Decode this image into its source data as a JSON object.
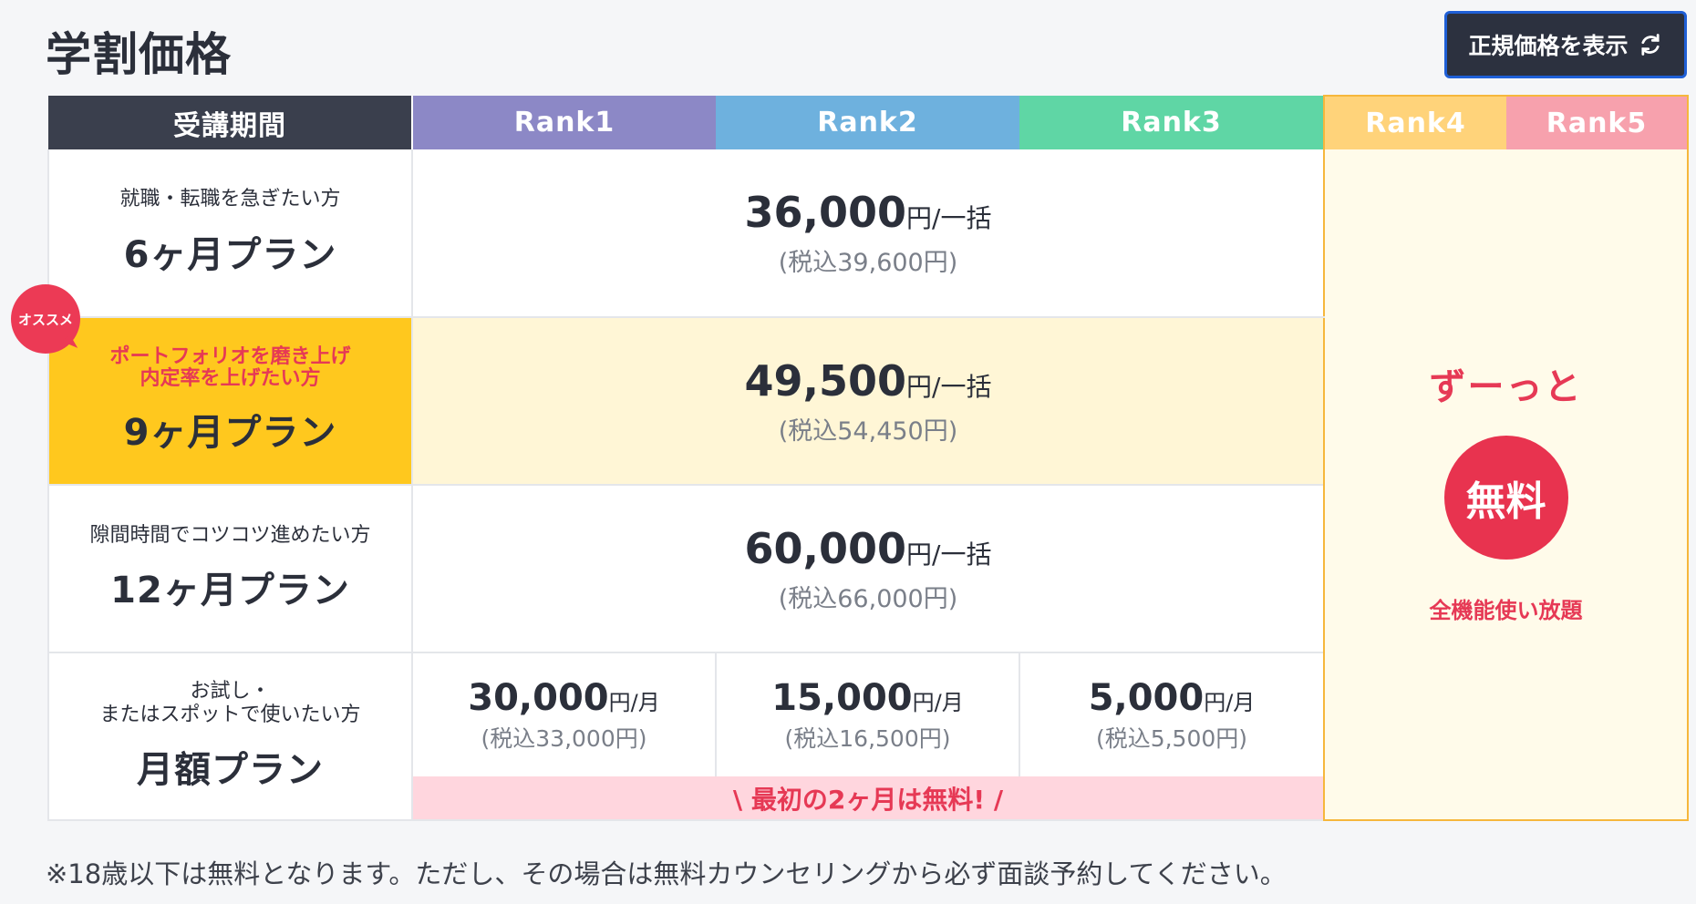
{
  "title": "学割価格",
  "toggle_button": {
    "label": "正規価格を表示",
    "icon": "refresh-icon"
  },
  "headers": {
    "period": "受講期間",
    "ranks": [
      "Rank1",
      "Rank2",
      "Rank3",
      "Rank4",
      "Rank5"
    ]
  },
  "colors": {
    "rank1": "#8c88c6",
    "rank2": "#6eb1de",
    "rank3": "#5fd6a5",
    "rank4": "#ffd37a",
    "rank5": "#f7a1ad",
    "accent": "#e63955",
    "featured": "#ffc81e"
  },
  "plans": [
    {
      "sub": "就職・転職を急ぎたい方",
      "name": "6ヶ月プラン",
      "amount": "36,000",
      "unit": "円/一括",
      "tax": "(税込39,600円)"
    },
    {
      "sub_line1": "ポートフォリオを磨き上げ",
      "sub_line2": "内定率を上げたい方",
      "name": "9ヶ月プラン",
      "amount": "49,500",
      "unit": "円/一括",
      "tax": "(税込54,450円)",
      "badge": "オススメ"
    },
    {
      "sub": "隙間時間でコツコツ進めたい方",
      "name": "12ヶ月プラン",
      "amount": "60,000",
      "unit": "円/一括",
      "tax": "(税込66,000円)"
    },
    {
      "sub_line1": "お試し・",
      "sub_line2": "またはスポットで使いたい方",
      "name": "月額プラン",
      "monthly": [
        {
          "amount": "30,000",
          "unit": "円/月",
          "tax": "(税込33,000円)"
        },
        {
          "amount": "15,000",
          "unit": "円/月",
          "tax": "(税込16,500円)"
        },
        {
          "amount": "5,000",
          "unit": "円/月",
          "tax": "(税込5,500円)"
        }
      ],
      "promo": "\\ 最初の2ヶ月は無料! /"
    }
  ],
  "free_panel": {
    "heading": "ずーっと",
    "circle": "無料",
    "note": "全機能使い放題"
  },
  "footnote": "※18歳以下は無料となります。ただし、その場合は無料カウンセリングから必ず面談予約してください。"
}
